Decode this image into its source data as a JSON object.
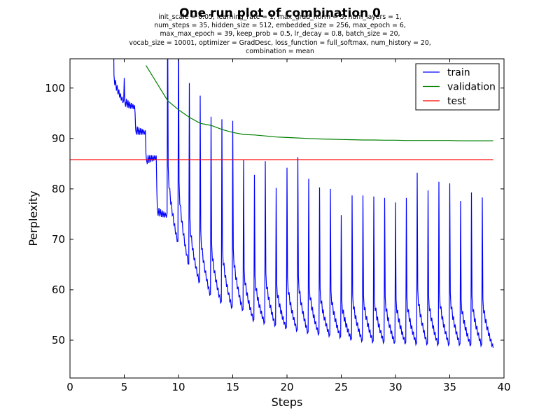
{
  "chart_data": {
    "type": "line",
    "title": "One run plot of combination 0",
    "subtitle_lines": [
      "init_scale = 0.05, learning_rate = 1, max_grad_norm = 5, num_layers = 1,",
      "num_steps = 35, hidden_size = 512, embedded_size = 256, max_epoch = 6,",
      "max_max_epoch = 39, keep_prob = 0.5, lr_decay = 0.8, batch_size = 20,",
      "vocab_size = 10001, optimizer = GradDesc, loss_function = full_softmax, num_history = 20,",
      "combination = mean"
    ],
    "xlabel": "Steps",
    "ylabel": "Perplexity",
    "xlim": [
      0,
      40
    ],
    "ylim": [
      42.5,
      105.8
    ],
    "xticks": [
      0,
      5,
      10,
      15,
      20,
      25,
      30,
      35,
      40
    ],
    "yticks": [
      50,
      60,
      70,
      80,
      90,
      100
    ],
    "grid": false,
    "legend_position": "top-right",
    "colors": {
      "train": "#0000ff",
      "validation": "#008000",
      "test": "#ff0000"
    },
    "series": [
      {
        "name": "train",
        "per_epoch": {
          "epochs": [
            4,
            5,
            6,
            7,
            8,
            9,
            10,
            11,
            12,
            13,
            14,
            15,
            16,
            17,
            18,
            19,
            20,
            21,
            22,
            23,
            24,
            25,
            26,
            27,
            28,
            29,
            30,
            31,
            32,
            33,
            34,
            35,
            36,
            37,
            38
          ],
          "peak": [
            115,
            102,
            95,
            87,
            80,
            115,
            115,
            101,
            98.5,
            94.3,
            93.8,
            93.5,
            85.7,
            82.8,
            85.5,
            80.2,
            84.2,
            86.3,
            82.0,
            80.3,
            80.0,
            74.8,
            78.7,
            78.7,
            78.5,
            78.2,
            77.3,
            78.2,
            83.2,
            79.7,
            81.4,
            81.1,
            77.6,
            79.3,
            78.3
          ],
          "floor": [
            96,
            95,
            90,
            85,
            73.5,
            68,
            63.5,
            60,
            57.5,
            56,
            55,
            54.5,
            52.5,
            52,
            51.5,
            51,
            50.5,
            50,
            49.8,
            49.5,
            49.2,
            48.8,
            48.5,
            48.3,
            48.2,
            48.1,
            48.0,
            47.9,
            47.8,
            47.7,
            47.7,
            47.7,
            47.6,
            47.6,
            47.6
          ],
          "end_of_run_value": 48.5
        }
      },
      {
        "name": "validation",
        "x": [
          7,
          8,
          9,
          10,
          11,
          12,
          13,
          14,
          15,
          16,
          17,
          18,
          19,
          20,
          21,
          22,
          23,
          24,
          25,
          26,
          27,
          28,
          29,
          30,
          31,
          32,
          33,
          34,
          35,
          36,
          37,
          38,
          39
        ],
        "values": [
          104.5,
          101,
          97.5,
          95.7,
          94.2,
          93.0,
          92.6,
          91.8,
          91.2,
          90.8,
          90.7,
          90.5,
          90.3,
          90.2,
          90.1,
          90.0,
          89.9,
          89.85,
          89.8,
          89.75,
          89.7,
          89.7,
          89.65,
          89.65,
          89.6,
          89.6,
          89.6,
          89.6,
          89.6,
          89.55,
          89.55,
          89.55,
          89.55
        ]
      },
      {
        "name": "test",
        "x": [
          0,
          39
        ],
        "values": [
          85.8,
          85.8
        ]
      }
    ]
  }
}
